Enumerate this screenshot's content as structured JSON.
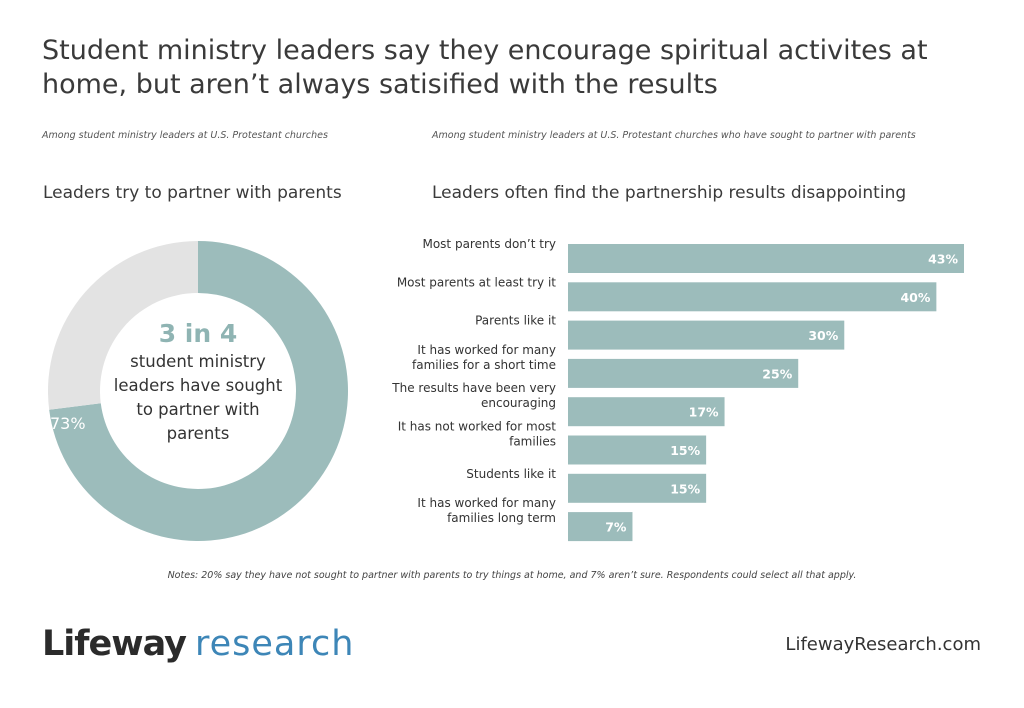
{
  "title": "Student ministry leaders say they encourage spiritual activites at home, but aren’t always satisified with the results",
  "left_panel": {
    "subtitle": "Among student ministry leaders at U.S. Protestant churches",
    "title": "Leaders try to partner with parents",
    "headline": "3 in 4",
    "center_label": "student ministry leaders have sought to partner with parents"
  },
  "right_panel": {
    "subtitle": "Among student ministry leaders at U.S. Protestant churches who have sought to partner with parents",
    "title": "Leaders often find the partnership results disappointing"
  },
  "notes": "Notes: 20% say they have not sought to partner with parents to try things at home, and 7% aren’t sure. Respondents could select all that apply.",
  "logo": {
    "part1": "Lifeway",
    "part2": "research"
  },
  "website": "LifewayResearch.com",
  "colors": {
    "teal": "#9cbcbb",
    "gray": "#e3e3e3",
    "headline": "#8fb4b3",
    "logo_blue": "#3d86b7"
  },
  "chart_data": [
    {
      "type": "pie",
      "title": "Leaders try to partner with parents",
      "categories": [
        "Have sought to partner with parents",
        ""
      ],
      "values": [
        73,
        27
      ],
      "value_labels": [
        "73%",
        ""
      ],
      "donut": true
    },
    {
      "type": "bar",
      "orientation": "horizontal",
      "title": "Leaders often find the partnership results disappointing",
      "categories": [
        "Most parents don’t try",
        "Most parents at least try it",
        "Parents like it",
        "It has worked for many families for a short time",
        "The results have been very encouraging",
        "It has not worked for most families",
        "Students like it",
        "It has worked for many families long term"
      ],
      "values": [
        43,
        40,
        30,
        25,
        17,
        15,
        15,
        7
      ],
      "value_labels": [
        "43%",
        "40%",
        "30%",
        "25%",
        "17%",
        "15%",
        "15%",
        "7%"
      ],
      "unit": "%",
      "xlim": [
        0,
        43
      ]
    }
  ]
}
